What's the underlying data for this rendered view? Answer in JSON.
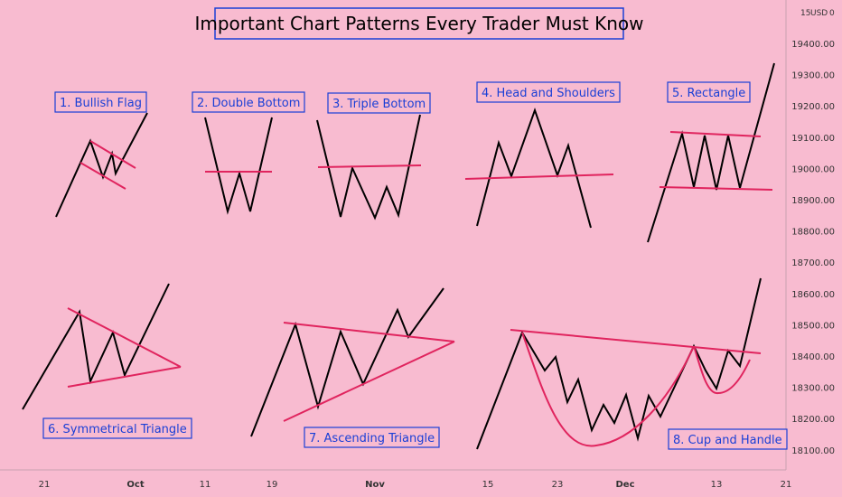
{
  "chart_data": {
    "type": "line",
    "title": "Important Chart Patterns Every Trader Must Know",
    "axis_unit": "USD",
    "axis_top_partial": "15",
    "axis_top_partial_2": "0",
    "y_ticks": [
      "19400.00",
      "19300.00",
      "19200.00",
      "19100.00",
      "19000.00",
      "18900.00",
      "18800.00",
      "18700.00",
      "18600.00",
      "18500.00",
      "18400.00",
      "18300.00",
      "18200.00",
      "18100.00"
    ],
    "x_ticks": [
      "21",
      "Oct",
      "11",
      "19",
      "Nov",
      "15",
      "23",
      "Dec",
      "13",
      "21"
    ],
    "grid": false,
    "colors": {
      "background": "#f8bbd0",
      "price": "#000000",
      "pattern": "#e0245e",
      "label": "#1a3fd6",
      "label_bg": "#f8bbd0"
    },
    "patterns": [
      {
        "name": "1. Bullish Flag"
      },
      {
        "name": "2. Double Bottom"
      },
      {
        "name": "3. Triple Bottom"
      },
      {
        "name": "4. Head and Shoulders"
      },
      {
        "name": "5. Rectangle"
      },
      {
        "name": "6. Symmetrical Triangle"
      },
      {
        "name": "7. Ascending Triangle"
      },
      {
        "name": "8. Cup and Handle"
      }
    ]
  }
}
